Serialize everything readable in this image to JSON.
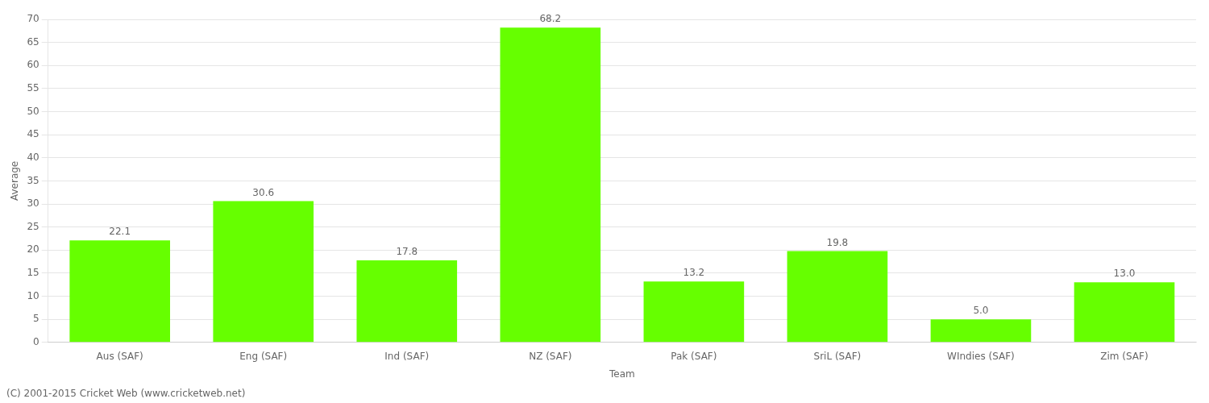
{
  "chart_data": {
    "type": "bar",
    "categories": [
      "Aus (SAF)",
      "Eng (SAF)",
      "Ind (SAF)",
      "NZ (SAF)",
      "Pak (SAF)",
      "SriL (SAF)",
      "WIndies (SAF)",
      "Zim (SAF)"
    ],
    "values": [
      22.1,
      30.6,
      17.8,
      68.2,
      13.2,
      19.8,
      5.0,
      13.0
    ],
    "value_labels": [
      "22.1",
      "30.6",
      "17.8",
      "68.2",
      "13.2",
      "19.8",
      "5.0",
      "13.0"
    ],
    "data_labels": true,
    "color": "#66ff00",
    "xlabel": "Team",
    "ylabel": "Average",
    "ylim": [
      0,
      70
    ],
    "yticks": [
      0,
      5,
      10,
      15,
      20,
      25,
      30,
      35,
      40,
      45,
      50,
      55,
      60,
      65,
      70
    ],
    "grid": true,
    "annotations": [
      "(C) 2001-2015 Cricket Web (www.cricketweb.net)"
    ]
  }
}
